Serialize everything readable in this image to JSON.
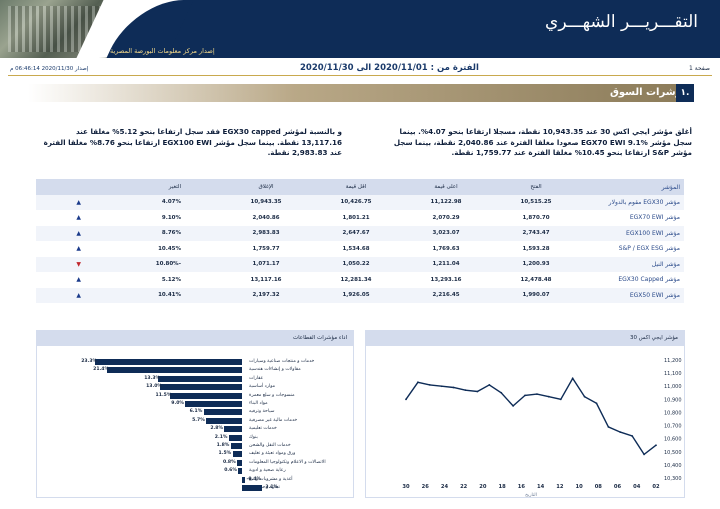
{
  "header": {
    "title": "التقـــريـــر الشهـــري",
    "subtitle": "إصدار مركز معلومات البورصة المصرية",
    "page_label": "صفحة 1",
    "period": "الفترة من : 2020/11/01 الى 2020/11/30",
    "issued": "إصدار 2020/11/30 06:46:14 م"
  },
  "section": {
    "number": "١.",
    "title": "مؤشرات السوق"
  },
  "paragraphs": {
    "right": "أغلق مؤشر ايجي اكس 30 عند 10,943.35 نقطة، مسجلا ارتفاعا بنحو 4.07%. بينما سجل مؤشر EGX70 EWI 9.1% صعودا مغلقا الفترة عند 2,040.86 نقطة، بينما سجل مؤشر S&P ارتفاعا بنحو 10.45% مغلقا الفترة عند 1,759.77 نقطة.",
    "left": "و بالنسبة لمؤشر EGX30 capped فقد سجل ارتفاعا بنحو 5.12% مغلقا عند 13,117.16 نقطة. بينما سجل مؤشر EGX100 EWI ارتفاعا بنحو 8.76% مغلقا الفترة عند 2,983.83 نقطة."
  },
  "table": {
    "headers": [
      "المؤشر",
      "الفتح",
      "اعلى قيمة",
      "اقل قيمة",
      "الإغلاق",
      "التغير"
    ],
    "rows": [
      {
        "name": "مؤشر EGX30 مقوم بالدولار",
        "open": "10,515.25",
        "high": "11,122.98",
        "low": "10,426.75",
        "close": "10,943.35",
        "change": "4.07%",
        "dir": "up"
      },
      {
        "name": "مؤشر EGX70 EWI",
        "open": "1,870.70",
        "high": "2,070.29",
        "low": "1,801.21",
        "close": "2,040.86",
        "change": "9.10%",
        "dir": "up"
      },
      {
        "name": "مؤشر EGX100 EWI",
        "open": "2,743.47",
        "high": "3,023.07",
        "low": "2,647.67",
        "close": "2,983.83",
        "change": "8.76%",
        "dir": "up"
      },
      {
        "name": "مؤشر S&P / EGX ESG",
        "open": "1,593.28",
        "high": "1,769.63",
        "low": "1,534.68",
        "close": "1,759.77",
        "change": "10.45%",
        "dir": "up"
      },
      {
        "name": "مؤشر النيل",
        "open": "1,200.93",
        "high": "1,211.04",
        "low": "1,050.22",
        "close": "1,071.17",
        "change": "-10.80%",
        "dir": "down"
      },
      {
        "name": "مؤشر EGX30 Capped",
        "open": "12,478.48",
        "high": "13,293.16",
        "low": "12,281.34",
        "close": "13,117.16",
        "change": "5.12%",
        "dir": "up"
      },
      {
        "name": "مؤشر EGX50 EWI",
        "open": "1,990.07",
        "high": "2,216.45",
        "low": "1,926.05",
        "close": "2,197.32",
        "change": "10.41%",
        "dir": "up"
      }
    ]
  },
  "sectors_panel": {
    "title": "اداء مؤشرات القطاعات",
    "items": [
      {
        "label": "خدمات و منتجات صناعية وسيارات",
        "value": 23.3,
        "text": "23.3%"
      },
      {
        "label": "مقاولات و إنشاءات هندسية",
        "value": 21.4,
        "text": "21.4%"
      },
      {
        "label": "عقارات",
        "value": 13.3,
        "text": "13.3%"
      },
      {
        "label": "موارد أساسية",
        "value": 13.0,
        "text": "13.0%"
      },
      {
        "label": "منسوجات و سلع معمرة",
        "value": 11.5,
        "text": "11.5%"
      },
      {
        "label": "مواد البناء",
        "value": 9.0,
        "text": "9.0%"
      },
      {
        "label": "سياحة وترفيه",
        "value": 6.1,
        "text": "6.1%"
      },
      {
        "label": "خدمات مالية غير مصرفية",
        "value": 5.7,
        "text": "5.7%"
      },
      {
        "label": "خدمات تعليمية",
        "value": 2.8,
        "text": "2.8%"
      },
      {
        "label": "بنوك",
        "value": 2.1,
        "text": "2.1%"
      },
      {
        "label": "خدمات النقل والشحن",
        "value": 1.8,
        "text": "1.8%"
      },
      {
        "label": "ورق ومواد تعبئة و تغليف",
        "value": 1.5,
        "text": "1.5%"
      },
      {
        "label": "الاتصالات و الاعلام وتكنولوجيا المعلومات",
        "value": 0.8,
        "text": "0.8%"
      },
      {
        "label": "رعاية صحية و ادوية",
        "value": 0.6,
        "text": "0.6%"
      },
      {
        "label": "أغذية و مشروبات و تبغ",
        "value": -0.4,
        "text": "-0.4%"
      },
      {
        "label": "تجارة و موزعون",
        "value": -3.1,
        "text": "-3.1%"
      }
    ]
  },
  "chart_data": {
    "type": "line",
    "title": "مؤشر ايجي اكس 30",
    "xlabel": "التاريخ",
    "x": [
      "30",
      "29",
      "26",
      "25",
      "24",
      "23",
      "22",
      "19",
      "18",
      "17",
      "16",
      "15",
      "12",
      "11",
      "10",
      "09",
      "08",
      "05",
      "04",
      "03",
      "02",
      "01"
    ],
    "x_ticks": [
      "30",
      "26",
      "24",
      "22",
      "20",
      "18",
      "16",
      "14",
      "12",
      "10",
      "08",
      "06",
      "04",
      "02"
    ],
    "series": [
      {
        "values": [
          10900,
          11030,
          11010,
          11000,
          10990,
          10970,
          10960,
          11010,
          10950,
          10850,
          10930,
          10940,
          10920,
          10900,
          11060,
          10920,
          10870,
          10690,
          10650,
          10620,
          10480,
          10550
        ]
      }
    ],
    "ylim": [
      10300,
      11200
    ],
    "yticks": [
      "11,200",
      "11,100",
      "11,000",
      "10,900",
      "10,800",
      "10,700",
      "10,600",
      "10,500",
      "10,400",
      "10,300"
    ],
    "color": "#0e2c57"
  }
}
